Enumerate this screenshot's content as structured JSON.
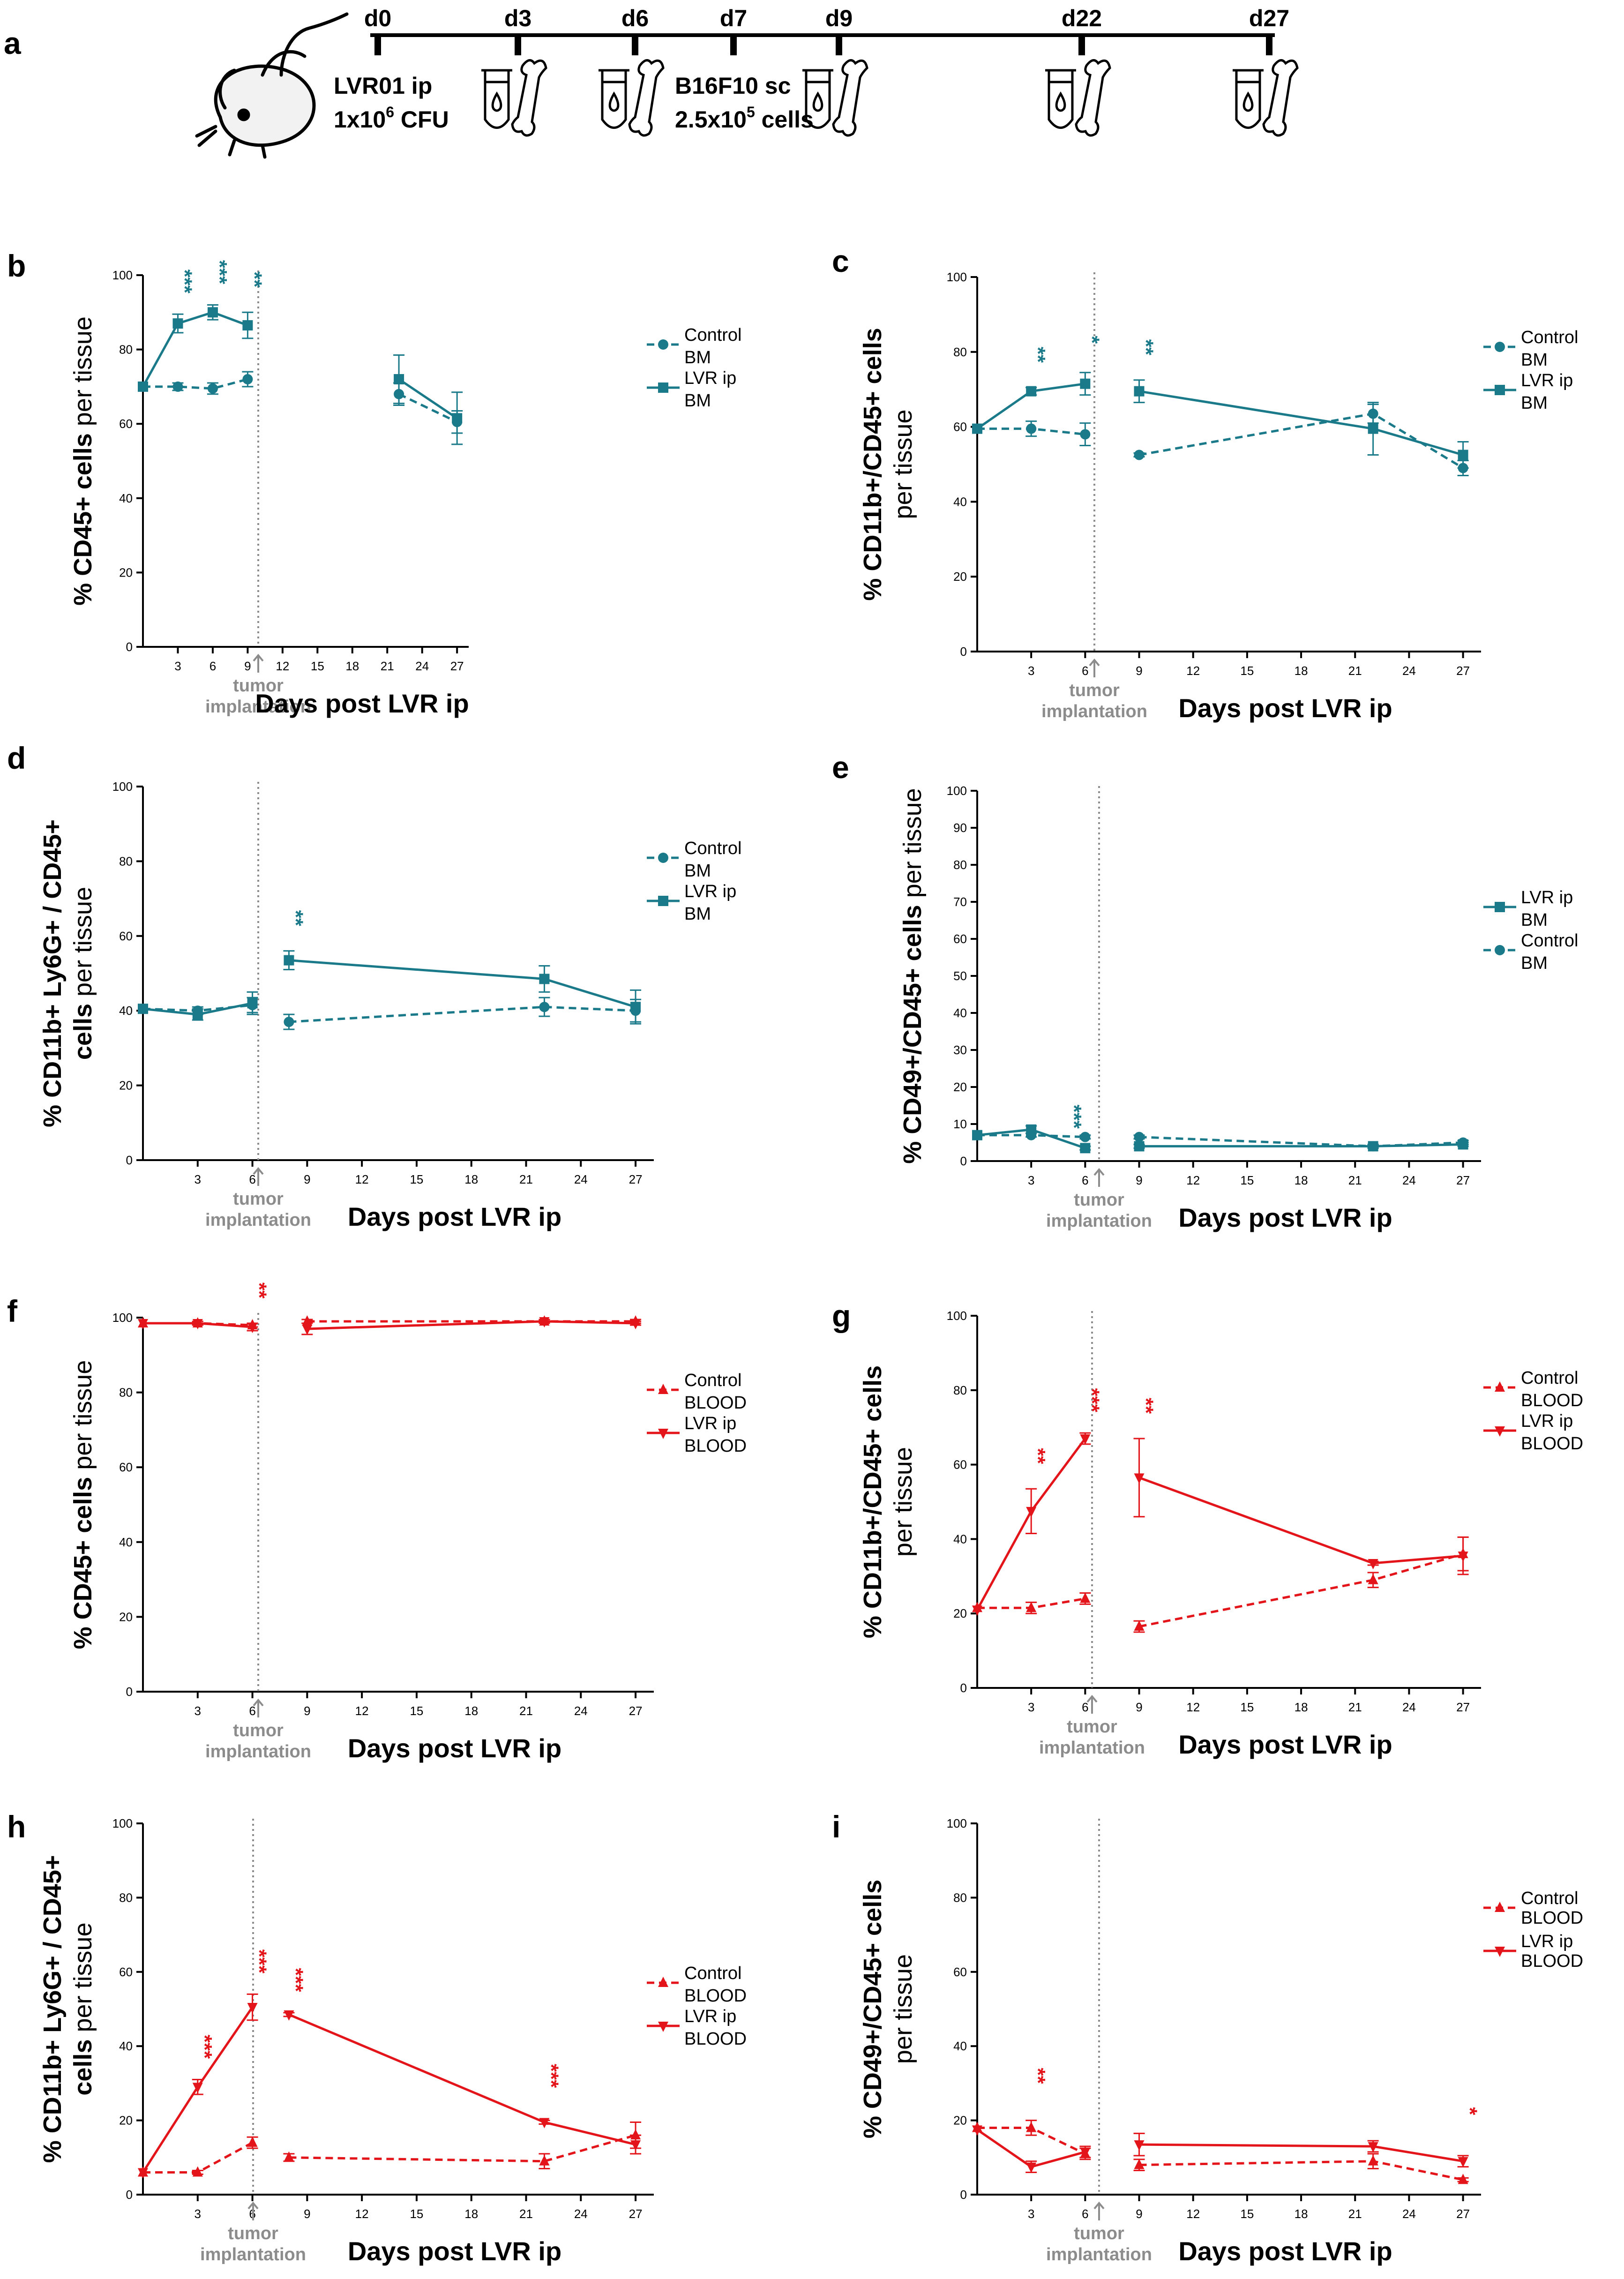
{
  "colors": {
    "bm": "#1a7a8a",
    "blood": "#e3151a",
    "gray": "#8c8c8c"
  },
  "timeline": {
    "letter": "a",
    "days": [
      "d0",
      "d3",
      "d6",
      "d7",
      "d9",
      "d22",
      "d27"
    ],
    "injection": {
      "line1": "LVR01 ip",
      "line2_pre": "1x10",
      "line2_sup": "6",
      "line2_post": " CFU"
    },
    "tumor": {
      "line1": "B16F10 sc",
      "line2_pre": "2.5x10",
      "line2_sup": "5",
      "line2_post": " cells"
    }
  },
  "chart_data": [
    {
      "panel": "b",
      "type": "line",
      "tissue": "BM",
      "ylabel_bold": "% CD45+ cells",
      "ylabel_plain": " per tissue",
      "xlabel": "Days post LVR ip",
      "tumor_label": [
        "tumor",
        "implantation"
      ],
      "ylim": [
        0,
        100
      ],
      "yticks": [
        0,
        20,
        40,
        60,
        80,
        100
      ],
      "xticks": [
        3,
        6,
        9,
        12,
        15,
        18,
        21,
        24,
        27
      ],
      "series": [
        {
          "name": "Control",
          "tissue": "BM",
          "marker": "circle",
          "dash": true,
          "x": [
            0,
            3,
            6,
            9,
            22,
            27
          ],
          "y": [
            70,
            70,
            69.5,
            72,
            68,
            60.5
          ],
          "err": [
            0,
            1,
            1.5,
            2,
            3,
            3
          ]
        },
        {
          "name": "LVR ip",
          "tissue": "BM",
          "marker": "square",
          "dash": false,
          "x": [
            0,
            3,
            6,
            9,
            22,
            27
          ],
          "y": [
            70,
            87,
            90,
            86.5,
            72,
            61.5
          ],
          "err": [
            0,
            2.5,
            2,
            3.5,
            6.5,
            7
          ]
        }
      ],
      "significance": [
        {
          "x": 3,
          "label": "***"
        },
        {
          "x": 6,
          "label": "***"
        },
        {
          "x": 9,
          "label": "**"
        }
      ]
    },
    {
      "panel": "c",
      "type": "line",
      "tissue": "BM",
      "ylabel_bold": "% CD11b+/CD45+ cells",
      "ylabel_plain": "per tissue",
      "xlabel": "Days post LVR ip",
      "tumor_label": [
        "tumor",
        "implantation"
      ],
      "ylim": [
        0,
        100
      ],
      "yticks": [
        0,
        20,
        40,
        60,
        80,
        100
      ],
      "xticks": [
        3,
        6,
        9,
        12,
        15,
        18,
        21,
        24,
        27
      ],
      "series": [
        {
          "name": "Control",
          "tissue": "BM",
          "marker": "circle",
          "dash": true,
          "x": [
            0,
            3,
            6,
            9,
            22,
            27
          ],
          "y": [
            59.5,
            59.5,
            58,
            52.5,
            63.5,
            49
          ],
          "err": [
            0,
            2,
            3,
            0.5,
            2.5,
            2
          ]
        },
        {
          "name": "LVR ip",
          "tissue": "BM",
          "marker": "square",
          "dash": false,
          "x": [
            0,
            3,
            6,
            9,
            22,
            27
          ],
          "y": [
            59.5,
            69.5,
            71.5,
            69.5,
            59.5,
            52.5
          ],
          "err": [
            0,
            1,
            3,
            3,
            7,
            3.5
          ]
        }
      ],
      "significance": [
        {
          "x": 3,
          "label": "**"
        },
        {
          "x": 6,
          "label": "*"
        },
        {
          "x": 9,
          "label": "**"
        }
      ]
    },
    {
      "panel": "d",
      "type": "line",
      "tissue": "BM",
      "ylabel_bold": "% CD11b+ Ly6G+ / CD45+",
      "ylabel_bold2": "cells",
      "ylabel_plain": " per tissue",
      "xlabel": "Days post LVR ip",
      "tumor_label": [
        "tumor",
        "implantation"
      ],
      "ylim": [
        0,
        100
      ],
      "yticks": [
        0,
        20,
        40,
        60,
        80,
        100
      ],
      "xticks": [
        3,
        6,
        9,
        12,
        15,
        18,
        21,
        24,
        27
      ],
      "series": [
        {
          "name": "Control",
          "tissue": "BM",
          "marker": "circle",
          "dash": true,
          "x": [
            0,
            3,
            6,
            8,
            22,
            27
          ],
          "y": [
            40.5,
            40,
            41.5,
            37,
            41,
            40
          ],
          "err": [
            0,
            1,
            2,
            2,
            2.5,
            3
          ]
        },
        {
          "name": "LVR ip",
          "tissue": "BM",
          "marker": "square",
          "dash": false,
          "x": [
            0,
            3,
            6,
            8,
            22,
            27
          ],
          "y": [
            40.5,
            39,
            42,
            53.5,
            48.5,
            41
          ],
          "err": [
            0,
            1.5,
            3,
            2.5,
            3.5,
            4.5
          ]
        }
      ],
      "significance": [
        {
          "x": 8,
          "label": "**"
        }
      ]
    },
    {
      "panel": "e",
      "type": "line",
      "tissue": "BM",
      "ylabel_bold": "% CD49+/CD45+ cells",
      "ylabel_plain": " per tissue",
      "xlabel": "Days post LVR ip",
      "tumor_label": [
        "tumor",
        "implantation"
      ],
      "ylim": [
        0,
        100
      ],
      "yticks": [
        0,
        10,
        20,
        30,
        40,
        50,
        60,
        70,
        80,
        90,
        100
      ],
      "xticks": [
        3,
        6,
        9,
        12,
        15,
        18,
        21,
        24,
        27
      ],
      "legend_order": [
        "LVR ip",
        "Control"
      ],
      "series": [
        {
          "name": "Control",
          "tissue": "BM",
          "marker": "circle",
          "dash": true,
          "x": [
            0,
            3,
            6,
            9,
            22,
            27
          ],
          "y": [
            7,
            7,
            6.5,
            6.5,
            4,
            5
          ],
          "err": [
            0,
            0.5,
            0.5,
            0.5,
            0.5,
            0.5
          ]
        },
        {
          "name": "LVR ip",
          "tissue": "BM",
          "marker": "square",
          "dash": false,
          "x": [
            0,
            3,
            6,
            9,
            22,
            27
          ],
          "y": [
            7,
            8.5,
            3.5,
            4,
            4,
            4.5
          ],
          "err": [
            0,
            1,
            0.5,
            0.5,
            0.5,
            0.5
          ]
        }
      ],
      "significance": [
        {
          "x": 5,
          "label": "***"
        }
      ]
    },
    {
      "panel": "f",
      "type": "line",
      "tissue": "BLOOD",
      "ylabel_bold": "% CD45+ cells",
      "ylabel_plain": " per tissue",
      "xlabel": "Days post LVR ip",
      "tumor_label": [
        "tumor",
        "implantation"
      ],
      "ylim": [
        0,
        100
      ],
      "yticks": [
        0,
        20,
        40,
        60,
        80,
        100
      ],
      "xticks": [
        3,
        6,
        9,
        12,
        15,
        18,
        21,
        24,
        27
      ],
      "series": [
        {
          "name": "Control",
          "tissue": "BLOOD",
          "marker": "triangle-up",
          "dash": true,
          "x": [
            0,
            3,
            6,
            9,
            22,
            27
          ],
          "y": [
            98.5,
            98.5,
            98,
            99,
            99,
            99
          ],
          "err": [
            0,
            0.5,
            0.5,
            0.5,
            0.5,
            0.5
          ]
        },
        {
          "name": "LVR ip",
          "tissue": "BLOOD",
          "marker": "triangle-down",
          "dash": false,
          "x": [
            0,
            3,
            6,
            9,
            22,
            27
          ],
          "y": [
            98.5,
            98.5,
            97.5,
            97,
            99,
            98.5
          ],
          "err": [
            0,
            0.5,
            1,
            1.5,
            0.5,
            0.5
          ]
        }
      ],
      "significance": [
        {
          "x": 6,
          "label": "**"
        }
      ]
    },
    {
      "panel": "g",
      "type": "line",
      "tissue": "BLOOD",
      "ylabel_bold": "% CD11b+/CD45+ cells",
      "ylabel_plain": "per tissue",
      "xlabel": "Days post LVR ip",
      "tumor_label": [
        "tumor",
        "implantation"
      ],
      "ylim": [
        0,
        100
      ],
      "yticks": [
        0,
        20,
        40,
        60,
        80,
        100
      ],
      "xticks": [
        3,
        6,
        9,
        12,
        15,
        18,
        21,
        24,
        27
      ],
      "series": [
        {
          "name": "Control",
          "tissue": "BLOOD",
          "marker": "triangle-up",
          "dash": true,
          "x": [
            0,
            3,
            6,
            9,
            22,
            27
          ],
          "y": [
            21.5,
            21.5,
            24,
            16.5,
            29,
            36
          ],
          "err": [
            0,
            1.5,
            1.5,
            1.5,
            2,
            4.5
          ]
        },
        {
          "name": "LVR ip",
          "tissue": "BLOOD",
          "marker": "triangle-down",
          "dash": false,
          "x": [
            0,
            3,
            6,
            9,
            22,
            27
          ],
          "y": [
            21,
            47.5,
            67,
            56.5,
            33.5,
            35.5
          ],
          "err": [
            0,
            6,
            1.5,
            10.5,
            0.5,
            5
          ]
        }
      ],
      "significance": [
        {
          "x": 3,
          "label": "**"
        },
        {
          "x": 6,
          "label": "***"
        },
        {
          "x": 9,
          "label": "**"
        }
      ]
    },
    {
      "panel": "h",
      "type": "line",
      "tissue": "BLOOD",
      "ylabel_bold": "% CD11b+ Ly6G+ / CD45+",
      "ylabel_bold2": "cells",
      "ylabel_plain": " per tissue",
      "xlabel": "Days post LVR ip",
      "tumor_label": [
        "tumor",
        "implantation"
      ],
      "ylim": [
        0,
        100
      ],
      "yticks": [
        0,
        20,
        40,
        60,
        80,
        100
      ],
      "xticks": [
        3,
        6,
        9,
        12,
        15,
        18,
        21,
        24,
        27
      ],
      "series": [
        {
          "name": "Control",
          "tissue": "BLOOD",
          "marker": "triangle-up",
          "dash": true,
          "x": [
            0,
            3,
            6,
            8,
            22,
            27
          ],
          "y": [
            6,
            6,
            14,
            10,
            9,
            16
          ],
          "err": [
            0,
            0.5,
            1.5,
            1,
            2,
            3.5
          ]
        },
        {
          "name": "LVR ip",
          "tissue": "BLOOD",
          "marker": "triangle-down",
          "dash": false,
          "x": [
            0,
            3,
            6,
            8,
            22,
            27
          ],
          "y": [
            6,
            29,
            50.5,
            48.5,
            19.5,
            13.5
          ],
          "err": [
            0,
            2,
            3.5,
            0.5,
            0.5,
            2.5
          ]
        }
      ],
      "significance": [
        {
          "x": 3,
          "label": "***"
        },
        {
          "x": 6,
          "label": "***"
        },
        {
          "x": 8,
          "label": "***"
        },
        {
          "x": 22,
          "label": "***"
        }
      ]
    },
    {
      "panel": "i",
      "type": "line",
      "tissue": "BLOOD",
      "ylabel_bold": "% CD49+/CD45+ cells",
      "ylabel_plain": "per tissue",
      "xlabel": "Days post LVR ip",
      "tumor_label": [
        "tumor",
        "implantation"
      ],
      "ylim": [
        0,
        100
      ],
      "yticks": [
        0,
        20,
        40,
        60,
        80,
        100
      ],
      "xticks": [
        3,
        6,
        9,
        12,
        15,
        18,
        21,
        24,
        27
      ],
      "small_legend": true,
      "series": [
        {
          "name": "Control",
          "tissue": "BLOOD",
          "marker": "triangle-up",
          "dash": true,
          "x": [
            0,
            3,
            6,
            9,
            22,
            27
          ],
          "y": [
            18,
            18,
            11,
            8,
            9,
            4
          ],
          "err": [
            0,
            2,
            1.5,
            1.5,
            2,
            0.5
          ]
        },
        {
          "name": "LVR ip",
          "tissue": "BLOOD",
          "marker": "triangle-down",
          "dash": false,
          "x": [
            0,
            3,
            6,
            9,
            22,
            27
          ],
          "y": [
            17.5,
            7.5,
            11.5,
            13.5,
            13,
            9
          ],
          "err": [
            0,
            1.5,
            1.5,
            3,
            1.5,
            1.5
          ]
        }
      ],
      "significance": [
        {
          "x": 3,
          "label": "**"
        },
        {
          "x": 27,
          "label": "*"
        }
      ]
    }
  ]
}
